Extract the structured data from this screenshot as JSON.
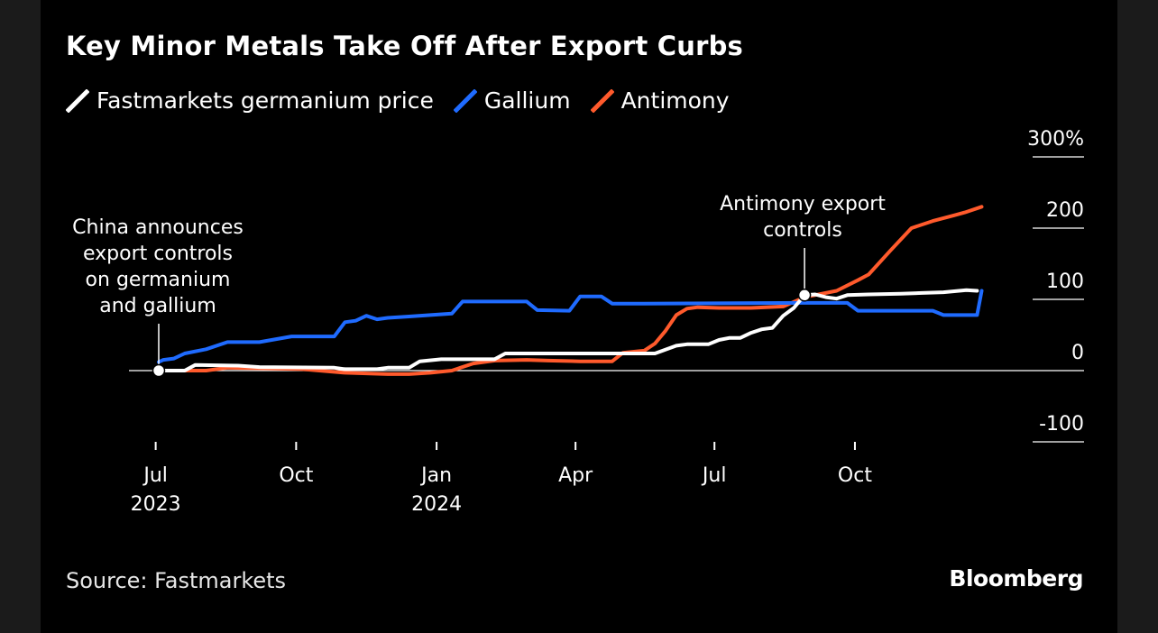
{
  "header": {
    "title": "Key Minor Metals Take Off After Export Curbs"
  },
  "legend": [
    {
      "label": "Fastmarkets germanium price",
      "color": "#ffffff"
    },
    {
      "label": "Gallium",
      "color": "#1f6bff"
    },
    {
      "label": "Antimony",
      "color": "#ff5a2c"
    }
  ],
  "footer": {
    "source": "Source: Fastmarkets",
    "brand": "Bloomberg"
  },
  "chart_data": {
    "type": "line",
    "title": "Key Minor Metals Take Off After Export Curbs",
    "y_unit": "%",
    "ylim": [
      -100,
      300
    ],
    "y_ticks": [
      {
        "value": 300,
        "label": "300%"
      },
      {
        "value": 200,
        "label": "200"
      },
      {
        "value": 100,
        "label": "100"
      },
      {
        "value": 0,
        "label": "0"
      },
      {
        "value": -100,
        "label": "-100"
      }
    ],
    "xlim": [
      "2023-07-03",
      "2024-12-31"
    ],
    "x_ticks": [
      {
        "date": "2023-07-01",
        "label": "Jul",
        "sub": "2023"
      },
      {
        "date": "2023-10-01",
        "label": "Oct",
        "sub": ""
      },
      {
        "date": "2024-01-01",
        "label": "Jan",
        "sub": "2024"
      },
      {
        "date": "2024-04-01",
        "label": "Apr",
        "sub": ""
      },
      {
        "date": "2024-07-01",
        "label": "Jul",
        "sub": ""
      },
      {
        "date": "2024-10-01",
        "label": "Oct",
        "sub": ""
      }
    ],
    "grid": false,
    "legend_position": "top-left",
    "series": [
      {
        "name": "Fastmarkets germanium price",
        "color": "#ffffff",
        "points": [
          [
            "2023-07-03",
            0
          ],
          [
            "2023-07-20",
            0
          ],
          [
            "2023-07-27",
            8
          ],
          [
            "2023-08-24",
            7
          ],
          [
            "2023-09-07",
            5
          ],
          [
            "2023-10-26",
            4
          ],
          [
            "2023-11-02",
            2
          ],
          [
            "2023-11-23",
            2
          ],
          [
            "2023-11-30",
            4
          ],
          [
            "2023-12-14",
            4
          ],
          [
            "2023-12-21",
            13
          ],
          [
            "2024-01-04",
            16
          ],
          [
            "2024-02-08",
            16
          ],
          [
            "2024-02-15",
            24
          ],
          [
            "2024-04-25",
            24
          ],
          [
            "2024-05-23",
            24
          ],
          [
            "2024-06-06",
            35
          ],
          [
            "2024-06-13",
            37
          ],
          [
            "2024-06-27",
            37
          ],
          [
            "2024-07-04",
            43
          ],
          [
            "2024-07-11",
            46
          ],
          [
            "2024-07-18",
            46
          ],
          [
            "2024-07-25",
            53
          ],
          [
            "2024-08-01",
            58
          ],
          [
            "2024-08-08",
            60
          ],
          [
            "2024-08-15",
            77
          ],
          [
            "2024-08-22",
            88
          ],
          [
            "2024-08-29",
            106
          ],
          [
            "2024-09-05",
            107
          ],
          [
            "2024-09-12",
            103
          ],
          [
            "2024-09-19",
            101
          ],
          [
            "2024-09-26",
            106
          ],
          [
            "2024-10-10",
            107
          ],
          [
            "2024-10-31",
            108
          ],
          [
            "2024-11-14",
            109
          ],
          [
            "2024-11-28",
            110
          ],
          [
            "2024-12-13",
            113
          ],
          [
            "2024-12-20",
            112
          ]
        ]
      },
      {
        "name": "Gallium",
        "color": "#1f6bff",
        "points": [
          [
            "2023-07-03",
            12
          ],
          [
            "2023-07-06",
            15
          ],
          [
            "2023-07-13",
            17
          ],
          [
            "2023-07-20",
            24
          ],
          [
            "2023-08-03",
            30
          ],
          [
            "2023-08-17",
            40
          ],
          [
            "2023-09-07",
            40
          ],
          [
            "2023-09-28",
            48
          ],
          [
            "2023-10-26",
            48
          ],
          [
            "2023-11-02",
            68
          ],
          [
            "2023-11-09",
            70
          ],
          [
            "2023-11-16",
            77
          ],
          [
            "2023-11-23",
            72
          ],
          [
            "2023-11-30",
            74
          ],
          [
            "2023-12-14",
            76
          ],
          [
            "2023-12-28",
            78
          ],
          [
            "2024-01-11",
            80
          ],
          [
            "2024-01-18",
            97
          ],
          [
            "2024-02-29",
            97
          ],
          [
            "2024-03-07",
            85
          ],
          [
            "2024-03-28",
            84
          ],
          [
            "2024-04-04",
            104
          ],
          [
            "2024-04-18",
            104
          ],
          [
            "2024-04-25",
            94
          ],
          [
            "2024-05-16",
            94
          ],
          [
            "2024-08-29",
            95
          ],
          [
            "2024-09-26",
            95
          ],
          [
            "2024-10-03",
            84
          ],
          [
            "2024-11-21",
            84
          ],
          [
            "2024-11-28",
            78
          ],
          [
            "2024-12-20",
            78
          ],
          [
            "2024-12-23",
            112
          ]
        ]
      },
      {
        "name": "Antimony",
        "color": "#ff5a2c",
        "points": [
          [
            "2023-07-03",
            0
          ],
          [
            "2023-08-03",
            0
          ],
          [
            "2023-08-17",
            4
          ],
          [
            "2023-09-14",
            3
          ],
          [
            "2023-10-05",
            2
          ],
          [
            "2023-11-02",
            -3
          ],
          [
            "2023-11-30",
            -5
          ],
          [
            "2023-12-14",
            -5
          ],
          [
            "2023-12-28",
            -3
          ],
          [
            "2024-01-11",
            0
          ],
          [
            "2024-01-25",
            10
          ],
          [
            "2024-02-08",
            14
          ],
          [
            "2024-02-29",
            15
          ],
          [
            "2024-03-14",
            14
          ],
          [
            "2024-04-04",
            13
          ],
          [
            "2024-04-25",
            13
          ],
          [
            "2024-05-02",
            25
          ],
          [
            "2024-05-16",
            28
          ],
          [
            "2024-05-23",
            38
          ],
          [
            "2024-05-30",
            56
          ],
          [
            "2024-06-06",
            78
          ],
          [
            "2024-06-13",
            87
          ],
          [
            "2024-06-20",
            89
          ],
          [
            "2024-07-04",
            88
          ],
          [
            "2024-07-25",
            88
          ],
          [
            "2024-08-15",
            90
          ],
          [
            "2024-08-29",
            103
          ],
          [
            "2024-09-19",
            112
          ],
          [
            "2024-10-03",
            127
          ],
          [
            "2024-10-10",
            135
          ],
          [
            "2024-10-24",
            168
          ],
          [
            "2024-11-07",
            200
          ],
          [
            "2024-11-21",
            210
          ],
          [
            "2024-12-05",
            218
          ],
          [
            "2024-12-12",
            222
          ],
          [
            "2024-12-23",
            230
          ]
        ]
      }
    ],
    "annotations": [
      {
        "text": [
          "China announces",
          "export controls",
          "on germanium",
          "and gallium"
        ],
        "date": "2023-07-03",
        "value": 0
      },
      {
        "text": [
          "Antimony export",
          "controls"
        ],
        "date": "2024-08-29",
        "value": 106
      }
    ]
  }
}
